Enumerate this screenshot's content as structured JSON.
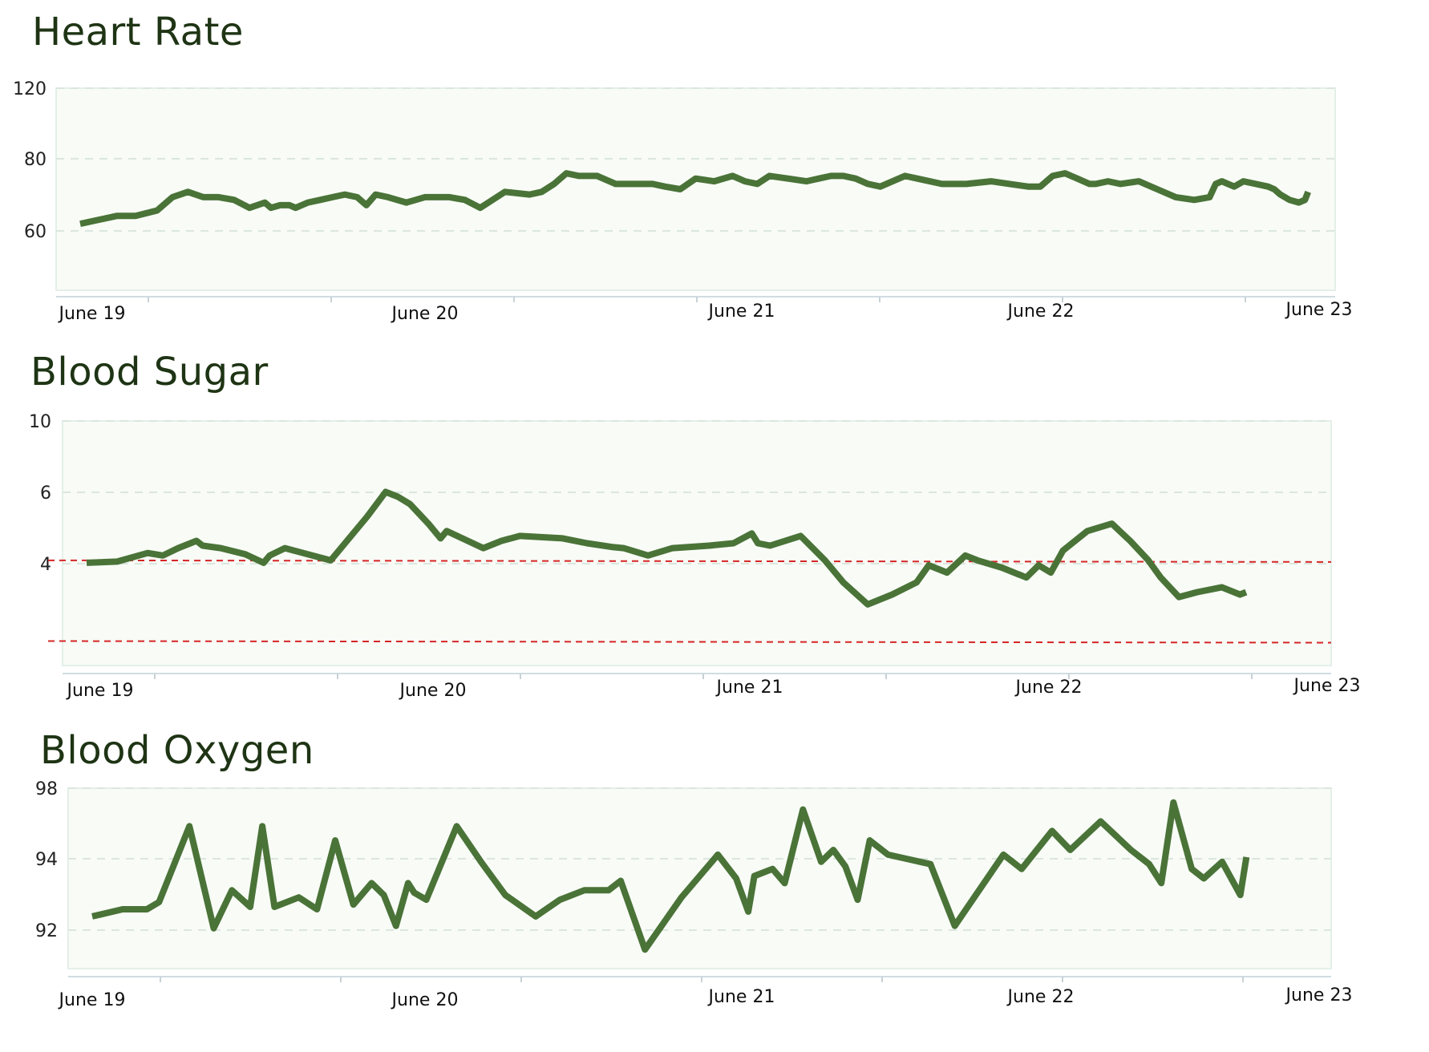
{
  "chart_data": [
    {
      "type": "line",
      "title": "Heart Rate",
      "ylim": [
        44,
        120
      ],
      "yticks": [
        "120",
        "80",
        "60"
      ],
      "xlim": [
        0,
        4
      ],
      "xticks": [
        "June 19",
        "June 20",
        "June 21",
        "June 22",
        "June 23"
      ],
      "grid": true,
      "colors": {
        "line": "#4a7338",
        "plot_bg": "#f8fbf6",
        "grid": "#dbe6de"
      },
      "x": [
        0.0,
        0.12,
        0.18,
        0.25,
        0.3,
        0.35,
        0.4,
        0.45,
        0.5,
        0.55,
        0.6,
        0.62,
        0.65,
        0.68,
        0.7,
        0.74,
        0.78,
        0.82,
        0.86,
        0.9,
        0.93,
        0.96,
        1.0,
        1.03,
        1.06,
        1.09,
        1.12,
        1.16,
        1.2,
        1.25,
        1.3,
        1.38,
        1.46,
        1.5,
        1.54,
        1.58,
        1.62,
        1.68,
        1.74,
        1.78,
        1.82,
        1.86,
        1.9,
        1.95,
        2.0,
        2.06,
        2.12,
        2.16,
        2.2,
        2.24,
        2.3,
        2.36,
        2.4,
        2.44,
        2.48,
        2.52,
        2.56,
        2.6,
        2.64,
        2.68,
        2.72,
        2.8,
        2.88,
        2.96,
        3.02,
        3.08,
        3.12,
        3.16,
        3.2,
        3.24,
        3.28,
        3.3,
        3.34,
        3.38,
        3.44,
        3.5,
        3.56,
        3.62,
        3.67,
        3.69,
        3.71,
        3.73,
        3.75,
        3.78,
        3.82,
        3.86,
        3.88,
        3.9,
        3.93,
        3.96,
        3.98,
        3.99
      ],
      "y": [
        69,
        72,
        72,
        74,
        79,
        81,
        79,
        79,
        78,
        75,
        77,
        75,
        76,
        76,
        75,
        77,
        78,
        79,
        80,
        79,
        76,
        80,
        79,
        78,
        77,
        78,
        79,
        79,
        79,
        78,
        75,
        81,
        80,
        81,
        84,
        88,
        87,
        87,
        84,
        84,
        84,
        84,
        83,
        82,
        86,
        85,
        87,
        85,
        84,
        87,
        86,
        85,
        86,
        87,
        87,
        86,
        84,
        83,
        85,
        87,
        86,
        84,
        84,
        85,
        84,
        83,
        83,
        87,
        88,
        86,
        84,
        84,
        85,
        84,
        85,
        82,
        79,
        78,
        79,
        84,
        85,
        84,
        83,
        85,
        84,
        83,
        82,
        80,
        78,
        77,
        78,
        81
      ]
    },
    {
      "type": "line",
      "title": "Blood Sugar",
      "ylim": [
        0,
        10
      ],
      "yticks": [
        "10",
        "6",
        "4"
      ],
      "xlim": [
        0,
        4
      ],
      "xticks": [
        "June 19",
        "June 20",
        "June 21",
        "June 22",
        "June 23"
      ],
      "grid": true,
      "reference_lines": [
        4.3,
        1.0
      ],
      "colors": {
        "line": "#4a7338",
        "plot_bg": "#f8fbf6",
        "grid": "#dbe6de",
        "reference": "#d62626"
      },
      "x": [
        0.0,
        0.1,
        0.2,
        0.25,
        0.3,
        0.36,
        0.38,
        0.44,
        0.52,
        0.58,
        0.6,
        0.65,
        0.8,
        0.92,
        0.98,
        1.02,
        1.06,
        1.12,
        1.16,
        1.18,
        1.3,
        1.36,
        1.42,
        1.56,
        1.64,
        1.72,
        1.76,
        1.84,
        1.92,
        2.04,
        2.12,
        2.18,
        2.2,
        2.24,
        2.34,
        2.42,
        2.48,
        2.56,
        2.64,
        2.72,
        2.76,
        2.82,
        2.88,
        2.92,
        3.0,
        3.08,
        3.12,
        3.16,
        3.2,
        3.28,
        3.36,
        3.42,
        3.48,
        3.52,
        3.58,
        3.64,
        3.72,
        3.78,
        3.8
      ],
      "y": [
        4.2,
        4.25,
        4.6,
        4.5,
        4.8,
        5.1,
        4.9,
        4.8,
        4.55,
        4.2,
        4.5,
        4.8,
        4.3,
        6.1,
        7.1,
        6.9,
        6.6,
        5.8,
        5.2,
        5.5,
        4.8,
        5.1,
        5.3,
        5.2,
        5.0,
        4.85,
        4.8,
        4.5,
        4.8,
        4.9,
        5.0,
        5.4,
        5.0,
        4.9,
        5.3,
        4.3,
        3.4,
        2.5,
        2.9,
        3.4,
        4.1,
        3.8,
        4.5,
        4.3,
        4.0,
        3.6,
        4.1,
        3.8,
        4.7,
        5.5,
        5.8,
        5.1,
        4.3,
        3.6,
        2.8,
        3.0,
        3.2,
        2.9,
        3.0
      ]
    },
    {
      "type": "line",
      "title": "Blood Oxygen",
      "ylim": [
        90.4,
        98
      ],
      "yticks": [
        "98",
        "94",
        "92"
      ],
      "xlim": [
        0,
        4
      ],
      "xticks": [
        "June 19",
        "June 20",
        "June 21",
        "June 22",
        "June 23"
      ],
      "grid": true,
      "colors": {
        "line": "#4a7338",
        "plot_bg": "#f8fbf6",
        "grid": "#dbe6de"
      },
      "x": [
        0.0,
        0.1,
        0.18,
        0.22,
        0.32,
        0.4,
        0.46,
        0.52,
        0.56,
        0.6,
        0.68,
        0.74,
        0.8,
        0.86,
        0.92,
        0.96,
        1.0,
        1.04,
        1.06,
        1.1,
        1.2,
        1.28,
        1.36,
        1.46,
        1.54,
        1.62,
        1.7,
        1.74,
        1.82,
        1.94,
        2.06,
        2.12,
        2.16,
        2.18,
        2.24,
        2.28,
        2.34,
        2.4,
        2.44,
        2.48,
        2.52,
        2.56,
        2.62,
        2.76,
        2.84,
        3.0,
        3.06,
        3.16,
        3.22,
        3.32,
        3.42,
        3.46,
        3.48,
        3.52,
        3.56,
        3.62,
        3.66,
        3.72,
        3.78,
        3.8
      ],
      "y": [
        92.6,
        92.9,
        92.9,
        93.2,
        96.4,
        92.1,
        93.7,
        93.0,
        96.4,
        93.0,
        93.4,
        92.9,
        95.8,
        93.1,
        94.0,
        93.5,
        92.2,
        94.0,
        93.6,
        93.3,
        96.4,
        94.9,
        93.5,
        92.6,
        93.3,
        93.7,
        93.7,
        94.1,
        91.2,
        93.4,
        95.2,
        94.2,
        92.8,
        94.3,
        94.6,
        94.0,
        97.1,
        94.9,
        95.4,
        94.7,
        93.3,
        95.8,
        95.2,
        94.8,
        92.2,
        95.2,
        94.6,
        96.2,
        95.4,
        96.6,
        95.4,
        95.0,
        94.8,
        94.0,
        97.4,
        94.6,
        94.2,
        94.9,
        93.5,
        95.1
      ]
    }
  ]
}
